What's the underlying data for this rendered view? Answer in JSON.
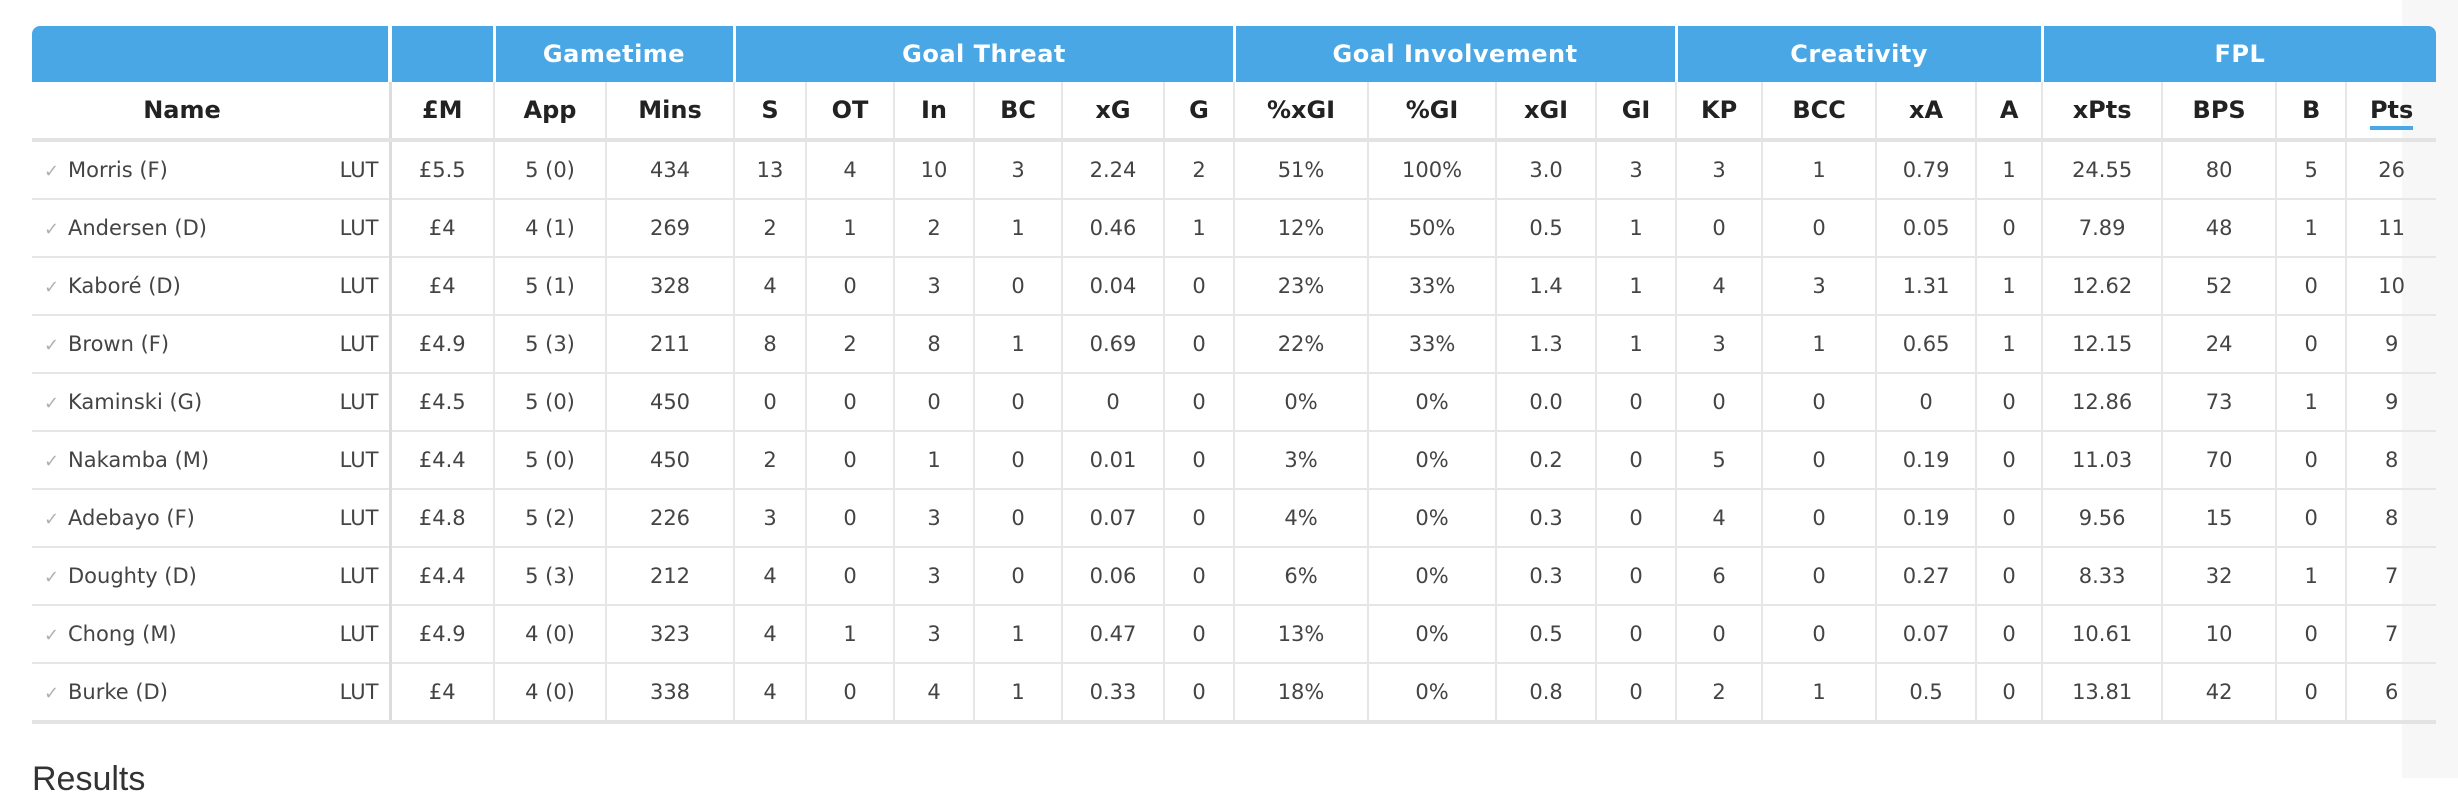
{
  "groups": [
    {
      "label": "",
      "span": 2
    },
    {
      "label": "",
      "span": 1
    },
    {
      "label": "Gametime",
      "span": 2
    },
    {
      "label": "Goal Threat",
      "span": 6
    },
    {
      "label": "Goal Involvement",
      "span": 4
    },
    {
      "label": "Creativity",
      "span": 4
    },
    {
      "label": "FPL",
      "span": 4
    }
  ],
  "columns": [
    "Name",
    "",
    "£M",
    "App",
    "Mins",
    "S",
    "OT",
    "In",
    "BC",
    "xG",
    "G",
    "%xGI",
    "%GI",
    "xGI",
    "GI",
    "KP",
    "BCC",
    "xA",
    "A",
    "xPts",
    "BPS",
    "B",
    "Pts"
  ],
  "sorted_column": "Pts",
  "rows": [
    {
      "name": "Morris (F)",
      "team": "LUT",
      "cells": [
        "£5.5",
        "5 (0)",
        "434",
        "13",
        "4",
        "10",
        "3",
        "2.24",
        "2",
        "51%",
        "100%",
        "3.0",
        "3",
        "3",
        "1",
        "0.79",
        "1",
        "24.55",
        "80",
        "5",
        "26"
      ]
    },
    {
      "name": "Andersen (D)",
      "team": "LUT",
      "cells": [
        "£4",
        "4 (1)",
        "269",
        "2",
        "1",
        "2",
        "1",
        "0.46",
        "1",
        "12%",
        "50%",
        "0.5",
        "1",
        "0",
        "0",
        "0.05",
        "0",
        "7.89",
        "48",
        "1",
        "11"
      ]
    },
    {
      "name": "Kaboré (D)",
      "team": "LUT",
      "cells": [
        "£4",
        "5 (1)",
        "328",
        "4",
        "0",
        "3",
        "0",
        "0.04",
        "0",
        "23%",
        "33%",
        "1.4",
        "1",
        "4",
        "3",
        "1.31",
        "1",
        "12.62",
        "52",
        "0",
        "10"
      ]
    },
    {
      "name": "Brown (F)",
      "team": "LUT",
      "cells": [
        "£4.9",
        "5 (3)",
        "211",
        "8",
        "2",
        "8",
        "1",
        "0.69",
        "0",
        "22%",
        "33%",
        "1.3",
        "1",
        "3",
        "1",
        "0.65",
        "1",
        "12.15",
        "24",
        "0",
        "9"
      ]
    },
    {
      "name": "Kaminski (G)",
      "team": "LUT",
      "cells": [
        "£4.5",
        "5 (0)",
        "450",
        "0",
        "0",
        "0",
        "0",
        "0",
        "0",
        "0%",
        "0%",
        "0.0",
        "0",
        "0",
        "0",
        "0",
        "0",
        "12.86",
        "73",
        "1",
        "9"
      ]
    },
    {
      "name": "Nakamba (M)",
      "team": "LUT",
      "cells": [
        "£4.4",
        "5 (0)",
        "450",
        "2",
        "0",
        "1",
        "0",
        "0.01",
        "0",
        "3%",
        "0%",
        "0.2",
        "0",
        "5",
        "0",
        "0.19",
        "0",
        "11.03",
        "70",
        "0",
        "8"
      ]
    },
    {
      "name": "Adebayo (F)",
      "team": "LUT",
      "cells": [
        "£4.8",
        "5 (2)",
        "226",
        "3",
        "0",
        "3",
        "0",
        "0.07",
        "0",
        "4%",
        "0%",
        "0.3",
        "0",
        "4",
        "0",
        "0.19",
        "0",
        "9.56",
        "15",
        "0",
        "8"
      ]
    },
    {
      "name": "Doughty (D)",
      "team": "LUT",
      "cells": [
        "£4.4",
        "5 (3)",
        "212",
        "4",
        "0",
        "3",
        "0",
        "0.06",
        "0",
        "6%",
        "0%",
        "0.3",
        "0",
        "6",
        "0",
        "0.27",
        "0",
        "8.33",
        "32",
        "1",
        "7"
      ]
    },
    {
      "name": "Chong (M)",
      "team": "LUT",
      "cells": [
        "£4.9",
        "4 (0)",
        "323",
        "4",
        "1",
        "3",
        "1",
        "0.47",
        "0",
        "13%",
        "0%",
        "0.5",
        "0",
        "0",
        "0",
        "0.07",
        "0",
        "10.61",
        "10",
        "0",
        "7"
      ]
    },
    {
      "name": "Burke (D)",
      "team": "LUT",
      "cells": [
        "£4",
        "4 (0)",
        "338",
        "4",
        "0",
        "4",
        "1",
        "0.33",
        "0",
        "18%",
        "0%",
        "0.8",
        "0",
        "2",
        "1",
        "0.5",
        "0",
        "13.81",
        "42",
        "0",
        "6"
      ]
    }
  ],
  "row_icon": "check-icon",
  "results_heading": "Results",
  "colors": {
    "header_bg": "#4aa7e6",
    "sort_underline": "#4aa7e6"
  }
}
